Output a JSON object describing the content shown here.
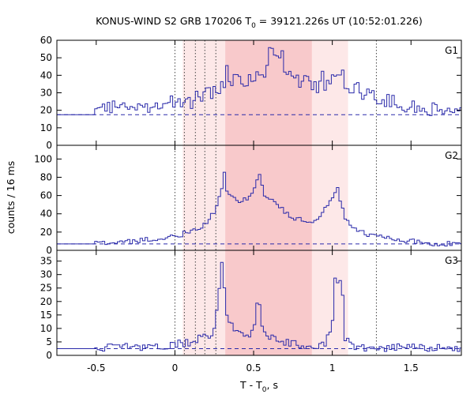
{
  "title": {
    "main": "KONUS-WIND S2 GRB 170206 T",
    "sub": "0",
    "rest": " = 39121.226s UT (10:52:01.226)"
  },
  "xlabel": {
    "main": "T - T",
    "sub": "0",
    "rest": ", s"
  },
  "ylabel": "counts / 16 ms",
  "colors": {
    "series": "#2a2aaa",
    "shade_light": "#fde8e8",
    "shade_dark": "#f8c9cb",
    "frame": "#000000",
    "marker": "#444444"
  },
  "chart_data": {
    "type": "line",
    "style": "step",
    "bin_width_s": 0.016,
    "xlim": [
      -0.75,
      1.82
    ],
    "xticks": [
      -0.5,
      0,
      0.5,
      1,
      1.5
    ],
    "xtick_labels": [
      "-0.5",
      "0",
      "0.5",
      "1",
      "1.5"
    ],
    "shaded_regions": [
      {
        "from": 0.05,
        "to": 1.1,
        "shade": "light"
      },
      {
        "from": 0.32,
        "to": 0.87,
        "shade": "dark"
      }
    ],
    "marker_lines": [
      0.0,
      0.06,
      0.13,
      0.19,
      0.26,
      1.28
    ],
    "panels": [
      {
        "name": "G1",
        "ylim": [
          0,
          60
        ],
        "yticks": [
          0,
          10,
          20,
          30,
          40,
          50,
          60
        ],
        "background": 17.5,
        "anchors": [
          [
            -0.75,
            17.5
          ],
          [
            -0.51,
            17.5
          ],
          [
            -0.5,
            23
          ],
          [
            -0.3,
            21
          ],
          [
            -0.1,
            24
          ],
          [
            0.0,
            25
          ],
          [
            0.1,
            25
          ],
          [
            0.2,
            29
          ],
          [
            0.3,
            33
          ],
          [
            0.4,
            37
          ],
          [
            0.5,
            38
          ],
          [
            0.6,
            45
          ],
          [
            0.63,
            50
          ],
          [
            0.7,
            42
          ],
          [
            0.8,
            37
          ],
          [
            0.9,
            33
          ],
          [
            1.0,
            38
          ],
          [
            1.1,
            35
          ],
          [
            1.2,
            30
          ],
          [
            1.3,
            27
          ],
          [
            1.4,
            24
          ],
          [
            1.6,
            21
          ],
          [
            1.82,
            21
          ]
        ],
        "spikes": [
          [
            0.33,
            8
          ],
          [
            0.61,
            9
          ],
          [
            0.68,
            6
          ],
          [
            0.93,
            5
          ],
          [
            1.07,
            6
          ]
        ],
        "noise": 4.5
      },
      {
        "name": "G2",
        "ylim": [
          0,
          115
        ],
        "yticks": [
          0,
          20,
          40,
          60,
          80,
          100
        ],
        "background": 7,
        "anchors": [
          [
            -0.75,
            7
          ],
          [
            -0.51,
            7
          ],
          [
            -0.5,
            9
          ],
          [
            -0.25,
            10
          ],
          [
            -0.1,
            14
          ],
          [
            0.0,
            16
          ],
          [
            0.1,
            20
          ],
          [
            0.2,
            28
          ],
          [
            0.27,
            48
          ],
          [
            0.31,
            75
          ],
          [
            0.35,
            60
          ],
          [
            0.4,
            52
          ],
          [
            0.45,
            55
          ],
          [
            0.5,
            62
          ],
          [
            0.53,
            82
          ],
          [
            0.57,
            62
          ],
          [
            0.65,
            50
          ],
          [
            0.75,
            36
          ],
          [
            0.85,
            30
          ],
          [
            0.92,
            36
          ],
          [
            0.97,
            50
          ],
          [
            1.03,
            66
          ],
          [
            1.08,
            35
          ],
          [
            1.15,
            22
          ],
          [
            1.25,
            16
          ],
          [
            1.4,
            12
          ],
          [
            1.6,
            8
          ],
          [
            1.82,
            7
          ]
        ],
        "spikes": [
          [
            0.31,
            12
          ],
          [
            0.54,
            6
          ],
          [
            1.03,
            5
          ]
        ],
        "noise": 3
      },
      {
        "name": "G3",
        "ylim": [
          0,
          39
        ],
        "yticks": [
          0,
          5,
          10,
          15,
          20,
          25,
          30,
          35
        ],
        "background": 2.5,
        "anchors": [
          [
            -0.75,
            2.5
          ],
          [
            -0.51,
            2.5
          ],
          [
            -0.5,
            3
          ],
          [
            -0.3,
            3
          ],
          [
            0.0,
            4
          ],
          [
            0.1,
            5
          ],
          [
            0.2,
            7
          ],
          [
            0.25,
            9
          ],
          [
            0.27,
            18
          ],
          [
            0.3,
            33
          ],
          [
            0.33,
            15
          ],
          [
            0.38,
            9
          ],
          [
            0.45,
            7
          ],
          [
            0.5,
            9
          ],
          [
            0.53,
            18
          ],
          [
            0.57,
            8
          ],
          [
            0.65,
            6
          ],
          [
            0.75,
            4
          ],
          [
            0.95,
            4
          ],
          [
            1.0,
            10
          ],
          [
            1.02,
            28
          ],
          [
            1.06,
            27
          ],
          [
            1.08,
            7
          ],
          [
            1.15,
            3
          ],
          [
            1.82,
            2.5
          ]
        ],
        "spikes": [
          [
            0.3,
            3
          ],
          [
            0.53,
            3
          ],
          [
            1.02,
            2
          ]
        ],
        "noise": 1.5
      }
    ]
  }
}
